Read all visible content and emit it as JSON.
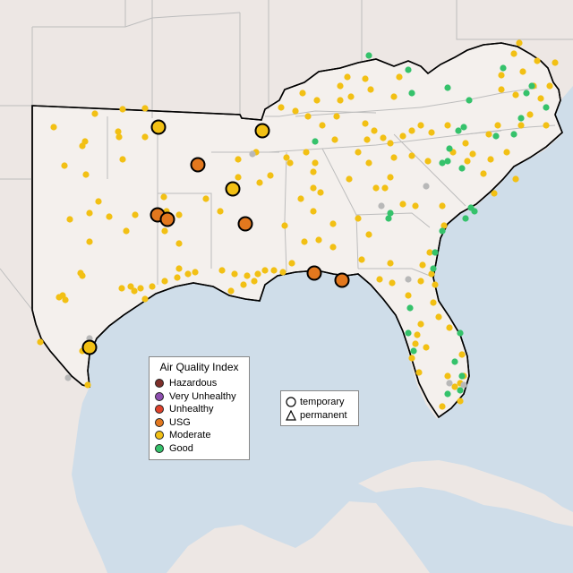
{
  "legend": {
    "title": "Air Quality Index",
    "categories": [
      {
        "label": "Hazardous",
        "color": "#7e2f2a"
      },
      {
        "label": "Very Unhealthy",
        "color": "#8e4fb0"
      },
      {
        "label": "Unhealthy",
        "color": "#e0422b"
      },
      {
        "label": "USG",
        "color": "#e3781e"
      },
      {
        "label": "Moderate",
        "color": "#f2c014"
      },
      {
        "label": "Good",
        "color": "#35c26b"
      }
    ]
  },
  "type_legend": {
    "temporary": "temporary",
    "permanent": "permanent"
  },
  "colors": {
    "water": "#cfdde9",
    "land": "#ede7e4",
    "region": "#f3efec",
    "unknown": "#b8b8b8"
  }
}
